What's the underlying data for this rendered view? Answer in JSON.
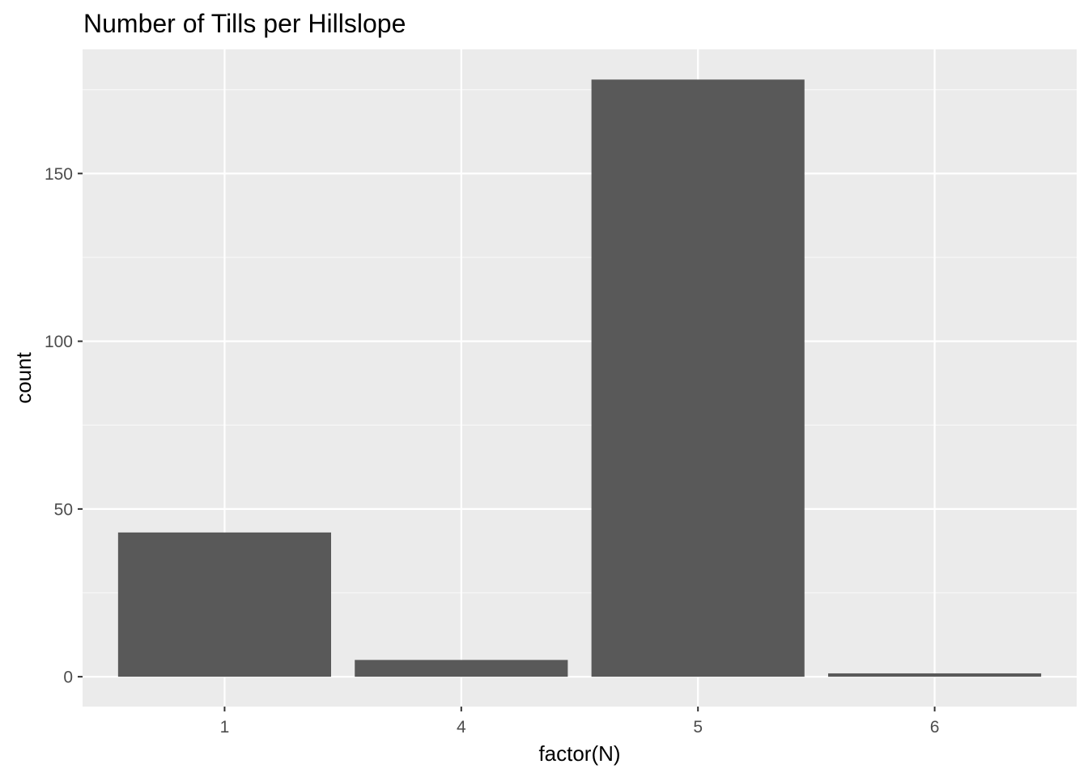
{
  "chart_data": {
    "type": "bar",
    "title": "Number of Tills per Hillslope",
    "xlabel": "factor(N)",
    "ylabel": "count",
    "categories": [
      "1",
      "4",
      "5",
      "6"
    ],
    "values": [
      43,
      5,
      178,
      1
    ],
    "ylim": [
      -8.9,
      187
    ],
    "y_ticks": [
      0,
      50,
      100,
      150
    ],
    "y_tick_labels": [
      "0",
      "50",
      "100",
      "150"
    ],
    "grid": true,
    "legend": "none"
  },
  "colors": {
    "panel_background": "#ebebeb",
    "grid_major": "#ffffff",
    "grid_minor": "#f7f7f7",
    "bar_fill": "#595959",
    "tick_mark": "#333333",
    "tick_text": "#4d4d4d",
    "title_text": "#000000"
  }
}
